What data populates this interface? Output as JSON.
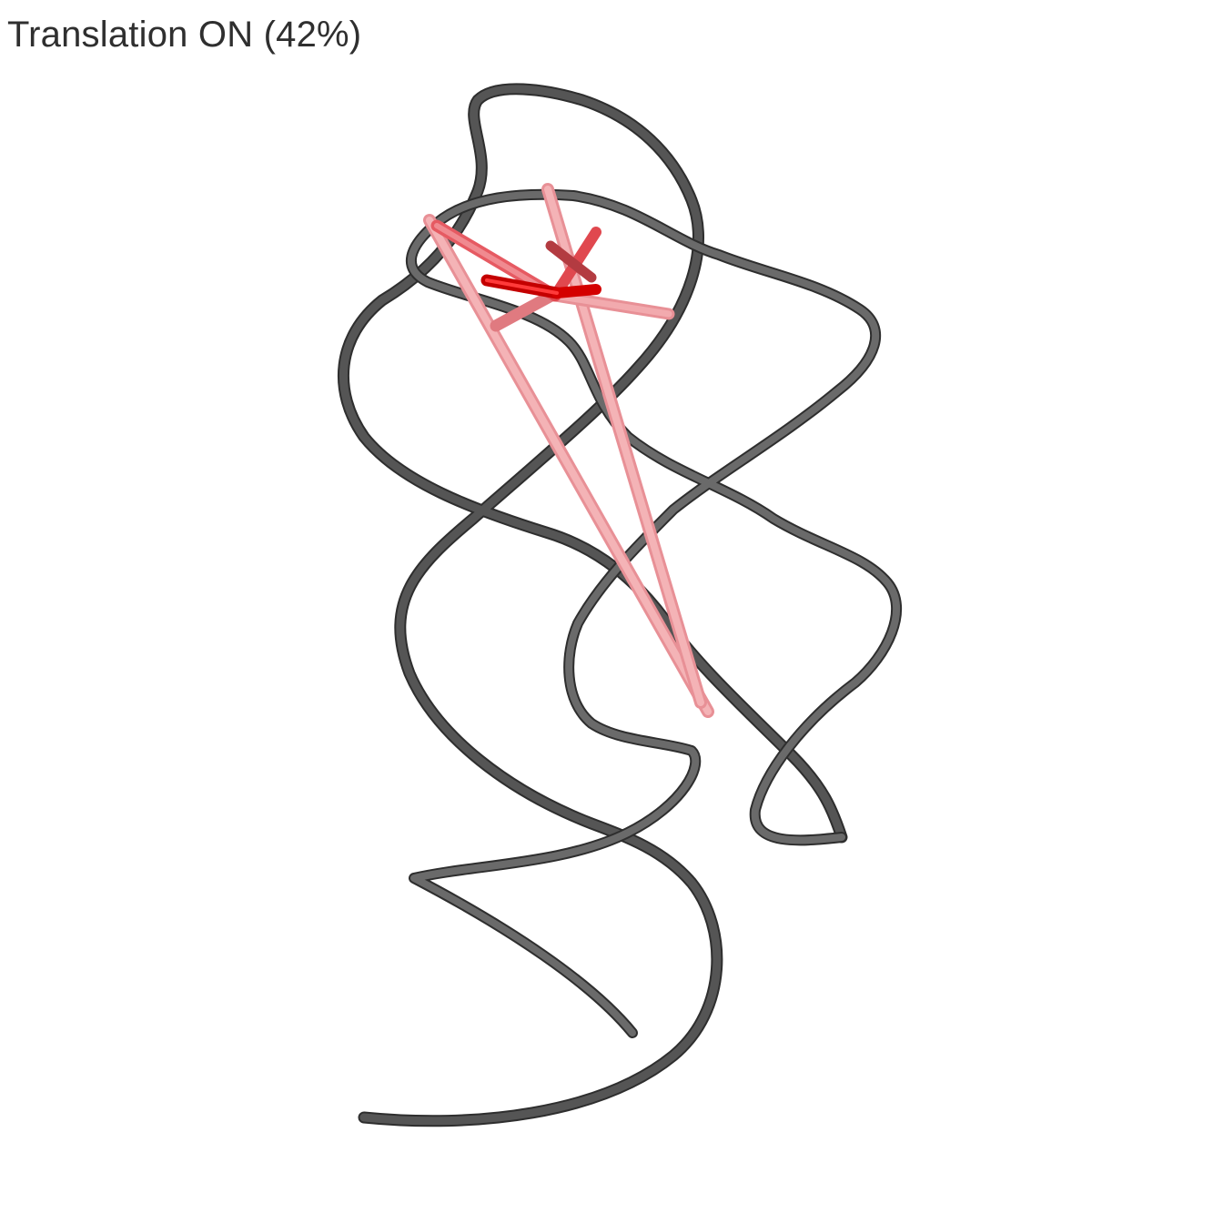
{
  "status": {
    "label": "Translation ON (42%)",
    "translation_state": "ON",
    "translation_percent": 42
  },
  "colors": {
    "background": "#ffffff",
    "backbone_ribbon": "#555555",
    "backbone_ribbon_shadow": "#2e2e2e",
    "cylinder_light": "#f2a3a8",
    "cylinder_mid": "#e8686e",
    "cylinder_core": "#d40000"
  },
  "scene": {
    "backbone": "rna-ribbon",
    "interactions": "pink-cylinders"
  }
}
